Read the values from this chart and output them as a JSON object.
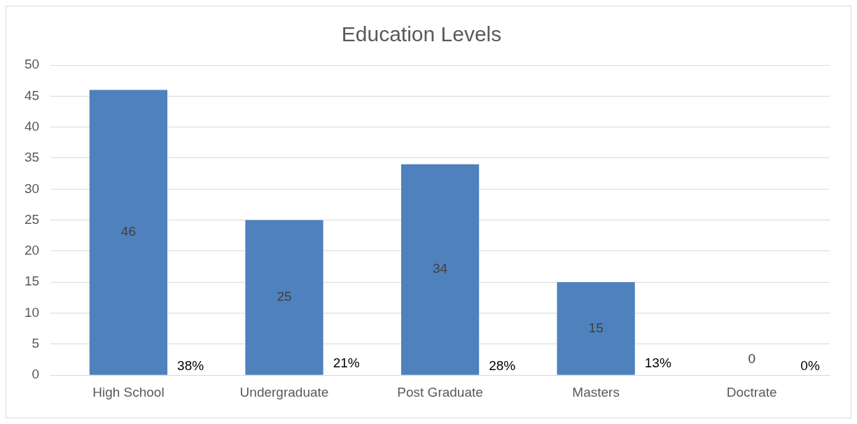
{
  "chart_data": {
    "type": "bar",
    "title": "Education Levels",
    "categories": [
      "High School",
      "Undergraduate",
      "Post Graduate",
      "Masters",
      "Doctrate"
    ],
    "values": [
      46,
      25,
      34,
      15,
      0
    ],
    "color": "#4f81bd",
    "ylim": [
      0,
      50
    ],
    "yticks": [
      0,
      5,
      10,
      15,
      20,
      25,
      30,
      35,
      40,
      45,
      50
    ],
    "grid": "y",
    "legend": false,
    "data_labels": true,
    "annotations": [
      "38%",
      "21%",
      "28%",
      "13%",
      "0%"
    ]
  }
}
